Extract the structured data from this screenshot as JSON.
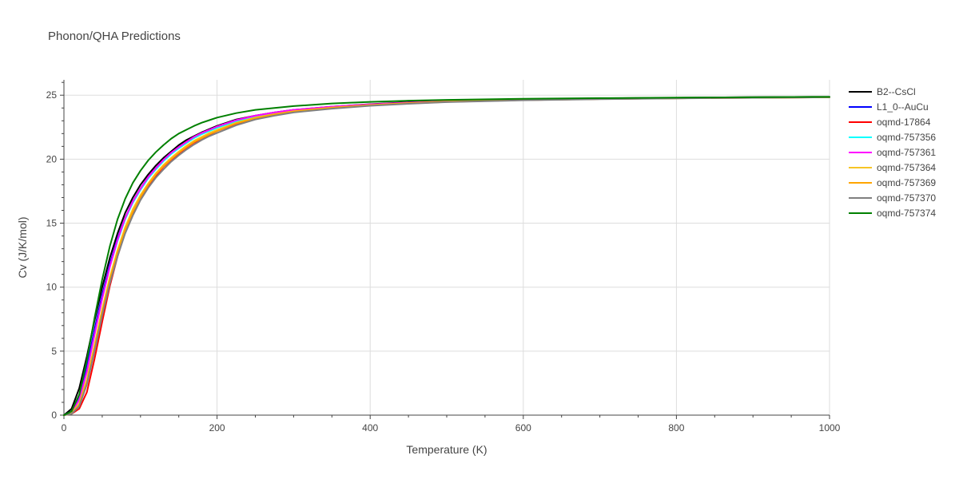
{
  "chart_data": {
    "type": "line",
    "title": "Phonon/QHA Predictions",
    "xlabel": "Temperature (K)",
    "ylabel": "Cv (J/K/mol)",
    "xlim": [
      0,
      1000
    ],
    "ylim": [
      0,
      26.2
    ],
    "xticks": [
      0,
      200,
      400,
      600,
      800,
      1000
    ],
    "yticks": [
      0,
      5,
      10,
      15,
      20,
      25
    ],
    "grid": true,
    "legend_position": "right",
    "x": [
      0,
      10,
      20,
      30,
      40,
      50,
      60,
      70,
      80,
      90,
      100,
      110,
      120,
      130,
      140,
      150,
      160,
      170,
      180,
      190,
      200,
      225,
      250,
      275,
      300,
      350,
      400,
      450,
      500,
      600,
      700,
      800,
      900,
      1000
    ],
    "series": [
      {
        "name": "B2--CsCl",
        "color": "#000000",
        "values": [
          0,
          0.5,
          2.1,
          4.6,
          7.4,
          10.0,
          12.3,
          14.2,
          15.8,
          17.0,
          18.0,
          18.8,
          19.5,
          20.1,
          20.6,
          21.1,
          21.5,
          21.8,
          22.1,
          22.35,
          22.6,
          23.1,
          23.4,
          23.65,
          23.85,
          24.1,
          24.3,
          24.45,
          24.55,
          24.68,
          24.75,
          24.8,
          24.84,
          24.87
        ]
      },
      {
        "name": "L1_0--AuCu",
        "color": "#0000ff",
        "values": [
          0,
          0.3,
          1.5,
          3.8,
          6.7,
          9.4,
          11.8,
          13.8,
          15.4,
          16.7,
          17.7,
          18.6,
          19.3,
          19.9,
          20.45,
          20.9,
          21.3,
          21.7,
          22.0,
          22.25,
          22.5,
          23.0,
          23.35,
          23.6,
          23.8,
          24.05,
          24.25,
          24.4,
          24.5,
          24.63,
          24.72,
          24.78,
          24.82,
          24.85
        ]
      },
      {
        "name": "oqmd-17864",
        "color": "#ff0000",
        "values": [
          0,
          0.1,
          0.5,
          1.8,
          4.4,
          7.3,
          10.1,
          12.4,
          14.3,
          15.8,
          17.0,
          17.9,
          18.7,
          19.4,
          19.95,
          20.45,
          20.9,
          21.3,
          21.6,
          21.9,
          22.2,
          22.75,
          23.15,
          23.45,
          23.7,
          24.0,
          24.2,
          24.35,
          24.48,
          24.62,
          24.7,
          24.76,
          24.8,
          24.84
        ]
      },
      {
        "name": "oqmd-757356",
        "color": "#00ffff",
        "values": [
          0,
          0.2,
          1.2,
          3.4,
          6.3,
          9.1,
          11.6,
          13.6,
          15.3,
          16.6,
          17.6,
          18.5,
          19.2,
          19.85,
          20.4,
          20.85,
          21.25,
          21.65,
          21.95,
          22.2,
          22.45,
          22.95,
          23.3,
          23.58,
          23.78,
          24.05,
          24.25,
          24.4,
          24.5,
          24.63,
          24.72,
          24.78,
          24.82,
          24.85
        ]
      },
      {
        "name": "oqmd-757361",
        "color": "#ff00ff",
        "values": [
          0,
          0.2,
          1.2,
          3.4,
          6.3,
          9.1,
          11.6,
          13.7,
          15.4,
          16.7,
          17.7,
          18.6,
          19.3,
          19.95,
          20.5,
          20.95,
          21.35,
          21.75,
          22.05,
          22.3,
          22.55,
          23.05,
          23.4,
          23.65,
          23.85,
          24.1,
          24.28,
          24.42,
          24.52,
          24.65,
          24.73,
          24.78,
          24.82,
          24.85
        ]
      },
      {
        "name": "oqmd-757364",
        "color": "#f7c525",
        "values": [
          0,
          0.15,
          0.9,
          2.8,
          5.5,
          8.3,
          10.8,
          12.9,
          14.7,
          16.1,
          17.2,
          18.1,
          18.9,
          19.55,
          20.1,
          20.6,
          21.05,
          21.45,
          21.75,
          22.05,
          22.3,
          22.85,
          23.25,
          23.52,
          23.75,
          24.03,
          24.23,
          24.38,
          24.5,
          24.63,
          24.71,
          24.77,
          24.81,
          24.84
        ]
      },
      {
        "name": "oqmd-757369",
        "color": "#ffa500",
        "values": [
          0,
          0.1,
          0.8,
          2.6,
          5.3,
          8.1,
          10.6,
          12.7,
          14.5,
          15.9,
          17.05,
          18.0,
          18.8,
          19.45,
          20.0,
          20.5,
          20.95,
          21.35,
          21.65,
          21.95,
          22.2,
          22.8,
          23.2,
          23.5,
          23.72,
          24.02,
          24.22,
          24.37,
          24.49,
          24.62,
          24.7,
          24.76,
          24.8,
          24.84
        ]
      },
      {
        "name": "oqmd-757370",
        "color": "#808080",
        "values": [
          0,
          0.1,
          0.7,
          2.4,
          5.0,
          7.8,
          10.3,
          12.4,
          14.2,
          15.6,
          16.8,
          17.75,
          18.55,
          19.2,
          19.8,
          20.3,
          20.75,
          21.15,
          21.5,
          21.8,
          22.05,
          22.65,
          23.1,
          23.4,
          23.65,
          23.95,
          24.17,
          24.33,
          24.46,
          24.6,
          24.69,
          24.75,
          24.8,
          24.84
        ]
      },
      {
        "name": "oqmd-757374",
        "color": "#008000",
        "values": [
          0,
          0.3,
          1.6,
          4.3,
          7.6,
          10.6,
          13.2,
          15.3,
          16.9,
          18.15,
          19.1,
          19.9,
          20.55,
          21.1,
          21.6,
          22.0,
          22.3,
          22.6,
          22.85,
          23.05,
          23.25,
          23.6,
          23.85,
          24.0,
          24.15,
          24.35,
          24.48,
          24.57,
          24.63,
          24.72,
          24.77,
          24.81,
          24.84,
          24.87
        ]
      }
    ]
  }
}
